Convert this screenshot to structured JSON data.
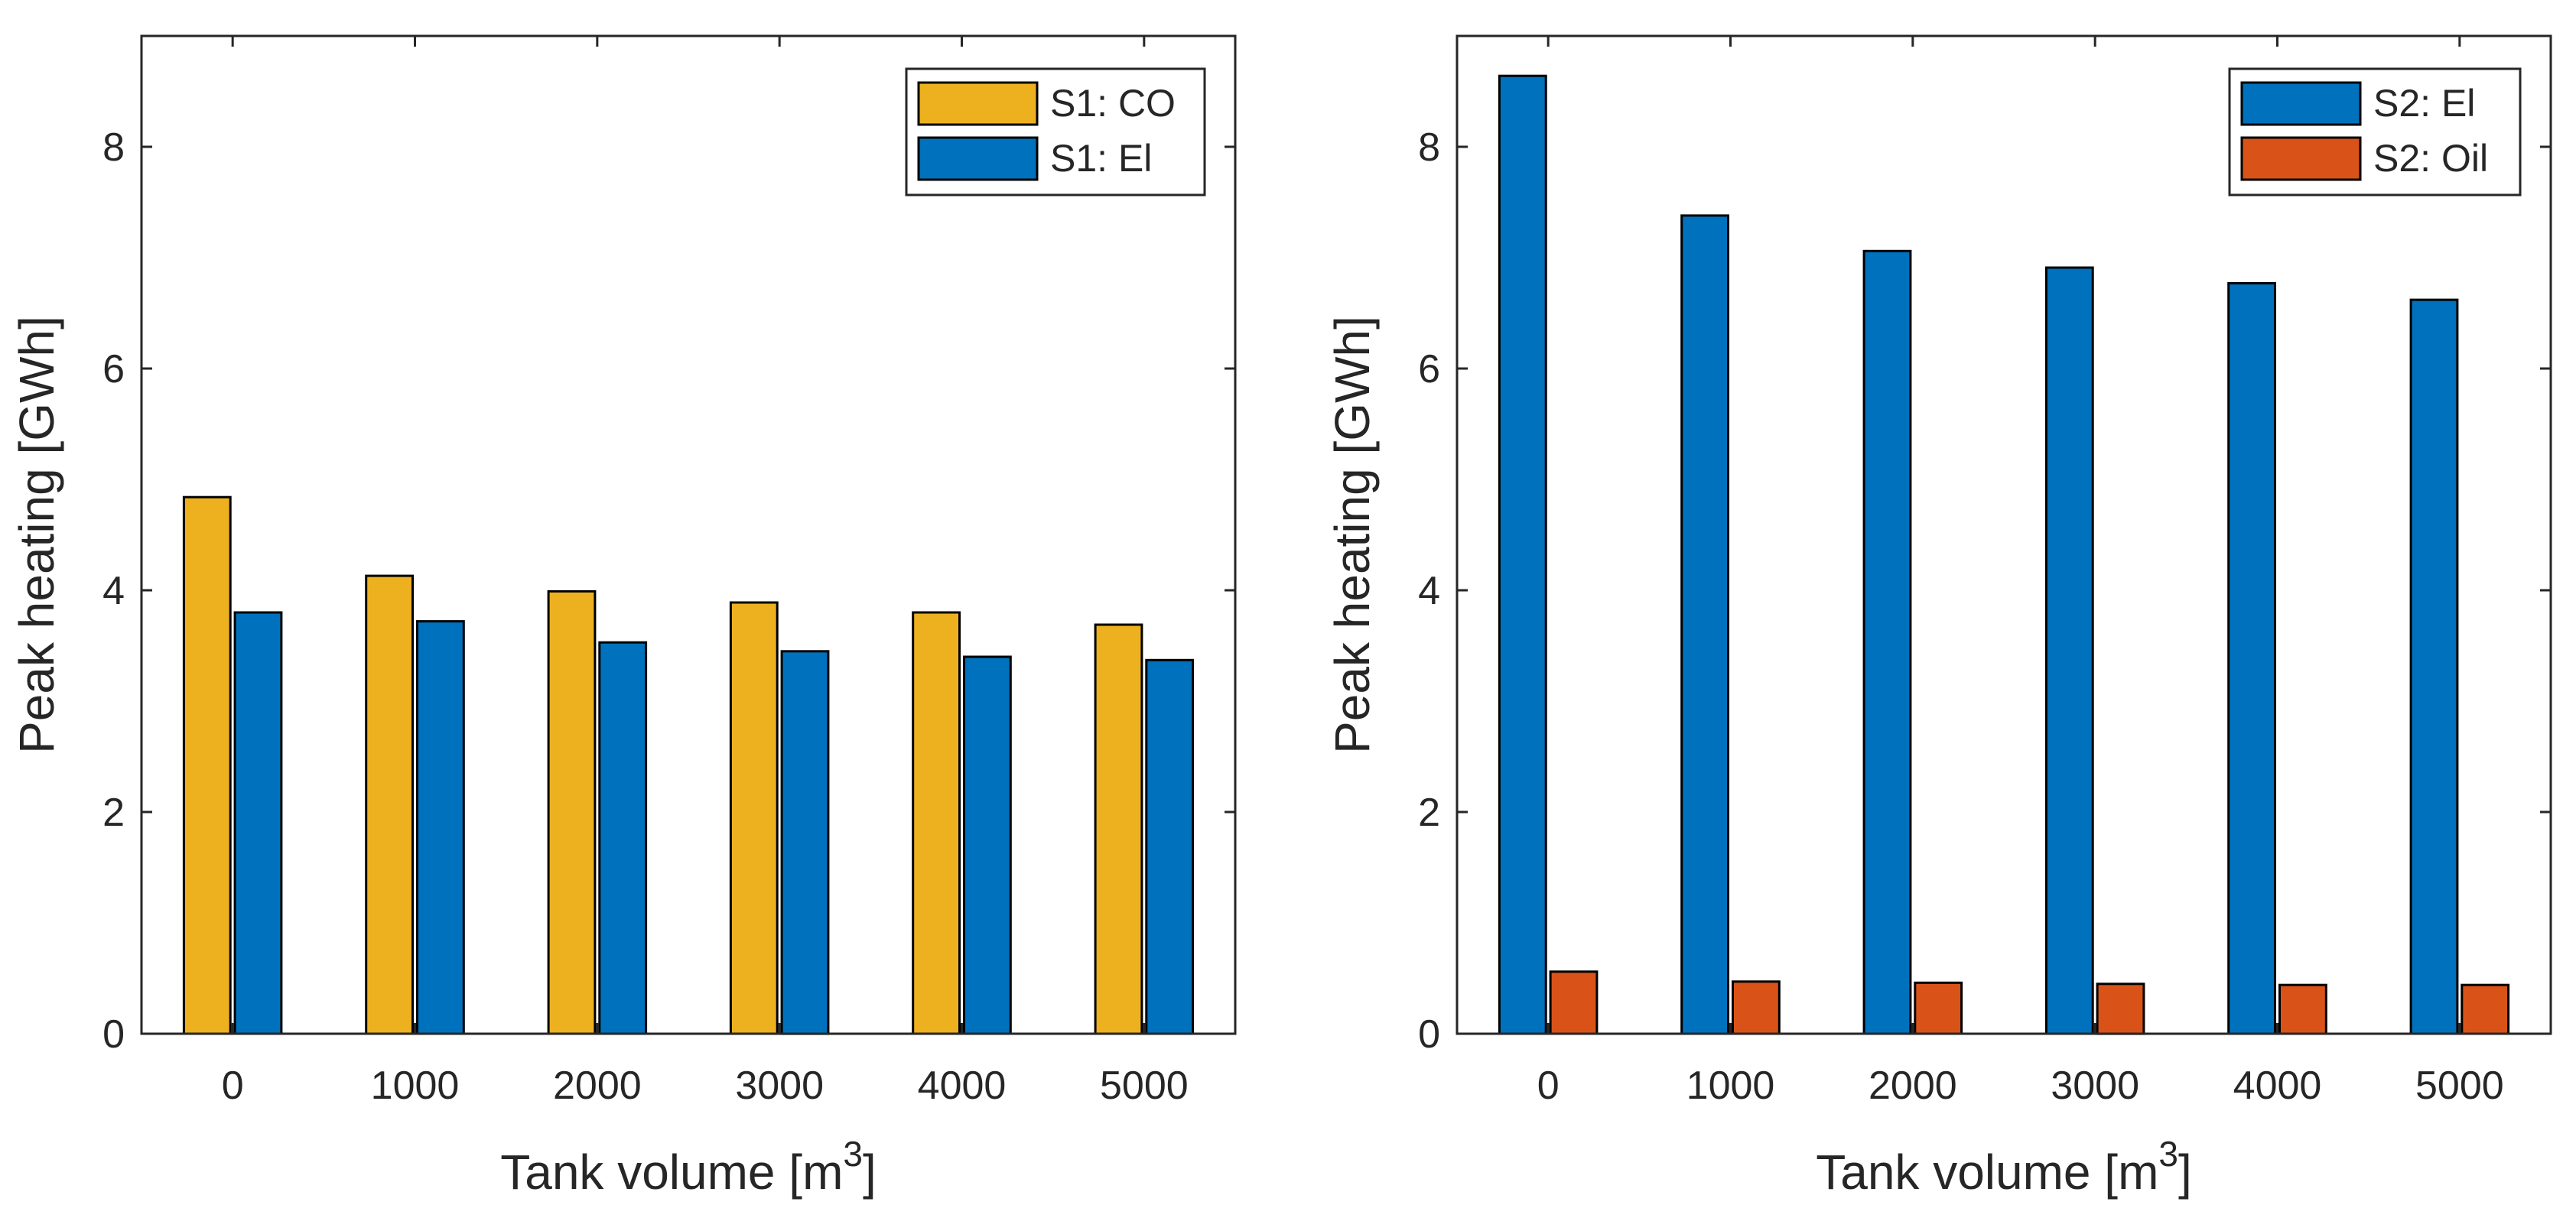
{
  "chart_data": [
    {
      "type": "bar",
      "xlabel": "Tank volume [m",
      "xlabel_superscript": "3",
      "xlabel_suffix": "]",
      "ylabel": "Peak heating [GWh]",
      "categories": [
        "0",
        "1000",
        "2000",
        "3000",
        "4000",
        "5000"
      ],
      "ylim": [
        0,
        9
      ],
      "yticks": [
        0,
        2,
        4,
        6,
        8
      ],
      "grid": false,
      "legend_position": "top-right",
      "series": [
        {
          "name": "S1: CO",
          "color": "#EDB120",
          "values": [
            4.84,
            4.13,
            3.99,
            3.89,
            3.8,
            3.69
          ]
        },
        {
          "name": "S1: El",
          "color": "#0072BD",
          "values": [
            3.8,
            3.72,
            3.53,
            3.45,
            3.4,
            3.37
          ]
        }
      ]
    },
    {
      "type": "bar",
      "xlabel": "Tank volume [m",
      "xlabel_superscript": "3",
      "xlabel_suffix": "]",
      "ylabel": "Peak heating [GWh]",
      "categories": [
        "0",
        "1000",
        "2000",
        "3000",
        "4000",
        "5000"
      ],
      "ylim": [
        0,
        9
      ],
      "yticks": [
        0,
        2,
        4,
        6,
        8
      ],
      "grid": false,
      "legend_position": "top-right",
      "series": [
        {
          "name": "S2: El",
          "color": "#0072BD",
          "values": [
            8.64,
            7.38,
            7.06,
            6.91,
            6.77,
            6.62
          ]
        },
        {
          "name": "S2: Oil",
          "color": "#D95319",
          "values": [
            0.56,
            0.47,
            0.46,
            0.45,
            0.44,
            0.44
          ]
        }
      ]
    }
  ]
}
